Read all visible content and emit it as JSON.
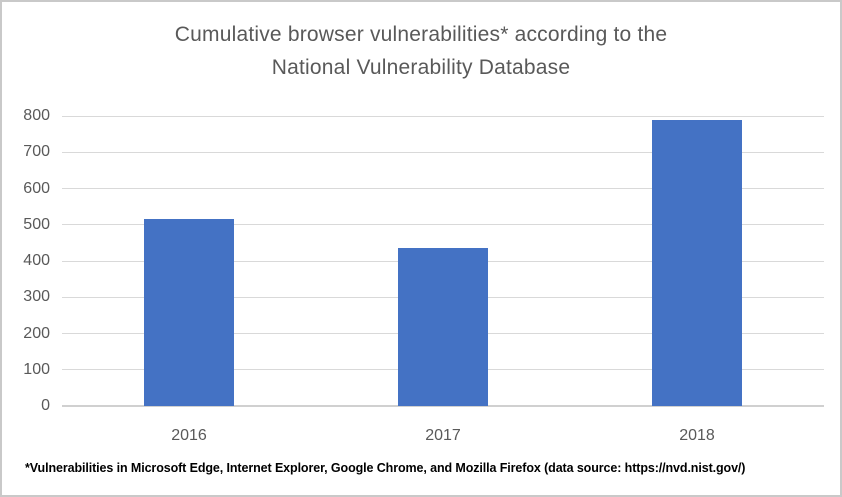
{
  "chart_data": {
    "type": "bar",
    "title": "Cumulative browser vulnerabilities* according to the National Vulnerability Database",
    "title_lines": [
      "Cumulative browser vulnerabilities* according to the",
      "National Vulnerability Database"
    ],
    "categories": [
      "2016",
      "2017",
      "2018"
    ],
    "values": [
      515,
      435,
      790
    ],
    "series_name": "Cumulative browser vulnerabilities",
    "xlabel": "",
    "ylabel": "",
    "ylim": [
      0,
      800
    ],
    "ytick_step": 100,
    "yticks": [
      0,
      100,
      200,
      300,
      400,
      500,
      600,
      700,
      800
    ],
    "grid": "horizontal",
    "legend": "none",
    "footnote": "*Vulnerabilities in Microsoft Edge, Internet Explorer, Google Chrome, and Mozilla Firefox (data source: https://nvd.nist.gov/)",
    "colors": {
      "bar": "#4472C4",
      "title_text": "#595959",
      "axis_text": "#595959",
      "gridline": "#D9D9D9",
      "axis_line": "#D0D0D0",
      "background": "#FFFFFF",
      "card_border": "#C9C9C9"
    }
  }
}
